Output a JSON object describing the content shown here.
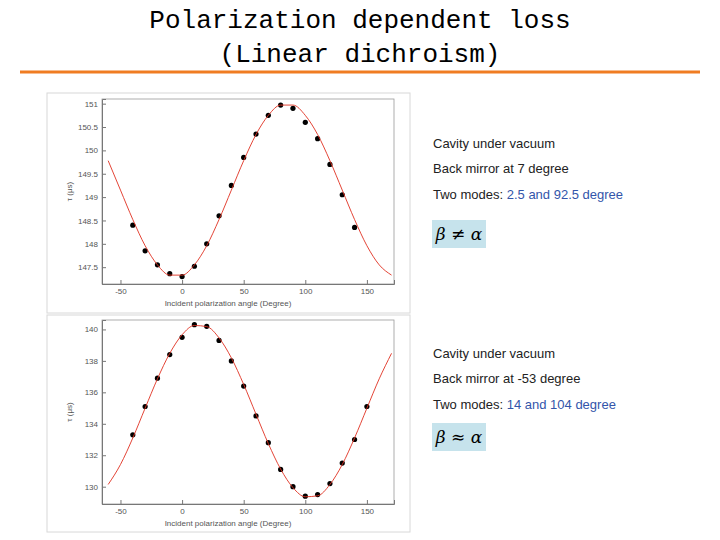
{
  "slide": {
    "title": "Polarization dependent loss",
    "subtitle": "(Linear dichroism)"
  },
  "chart_data": [
    {
      "type": "scatter",
      "x_label": "Incident polarization angle (Degree)",
      "y_label": "τ (μs)",
      "xlim": [
        -65,
        172
      ],
      "xticks": [
        -50,
        0,
        50,
        100,
        150
      ],
      "ylim": [
        147.14,
        151.1
      ],
      "yticks": [
        147.5,
        148,
        148.5,
        149,
        149.5,
        150,
        150.5,
        151
      ],
      "annotations": [
        "Cavity under vacuum",
        "Back mirror at 7 degree",
        [
          "Two modes: ",
          "2.5 and 92.5 degree"
        ],
        "β ≠ α"
      ],
      "series": [
        {
          "type": "scatter",
          "marker": "circle",
          "color": "#000000",
          "x": [
            -40,
            -30,
            -20,
            -10,
            0,
            10,
            20,
            30,
            40,
            50,
            60,
            70,
            80,
            90,
            100,
            110,
            120,
            130,
            140
          ],
          "values": [
            148.4,
            147.85,
            147.55,
            147.36,
            147.3,
            147.52,
            148.0,
            148.6,
            149.25,
            149.85,
            150.35,
            150.75,
            150.97,
            150.9,
            150.6,
            150.25,
            149.7,
            149.05,
            148.35
          ]
        },
        {
          "type": "line",
          "line_style": "solid",
          "color": "#e03020",
          "x": [
            -60,
            -50,
            -40,
            -30,
            -20,
            -10,
            0,
            10,
            20,
            30,
            40,
            50,
            60,
            70,
            80,
            90,
            100,
            110,
            120,
            130,
            140,
            150,
            160,
            170
          ],
          "values": [
            149.78,
            149.15,
            148.52,
            147.96,
            147.55,
            147.33,
            147.33,
            147.55,
            147.96,
            148.52,
            149.15,
            149.78,
            150.34,
            150.75,
            150.97,
            150.97,
            150.75,
            150.34,
            149.78,
            149.15,
            148.52,
            147.96,
            147.55,
            147.33
          ]
        }
      ]
    },
    {
      "type": "scatter",
      "x_label": "Incident polarization angle (Degree)",
      "y_label": "τ (μs)",
      "xlim": [
        -65,
        172
      ],
      "xticks": [
        -50,
        0,
        50,
        100,
        150
      ],
      "ylim": [
        128.9,
        140.6
      ],
      "yticks": [
        130,
        132,
        134,
        136,
        138,
        140
      ],
      "annotations": [
        "Cavity under vacuum",
        "Back mirror at -53 degree",
        [
          "Two modes: ",
          "14 and 104 degree"
        ],
        "β ≈ α"
      ],
      "series": [
        {
          "type": "scatter",
          "marker": "circle",
          "color": "#000000",
          "x": [
            -40,
            -30,
            -20,
            -10,
            0,
            10,
            20,
            30,
            40,
            50,
            60,
            70,
            80,
            90,
            100,
            110,
            120,
            130,
            140,
            150
          ],
          "values": [
            133.3,
            135.1,
            136.9,
            138.4,
            139.5,
            140.3,
            140.2,
            139.3,
            138.0,
            136.4,
            134.5,
            132.8,
            131.1,
            130.0,
            129.4,
            129.5,
            130.2,
            131.5,
            133.0,
            135.1
          ]
        },
        {
          "type": "line",
          "line_style": "solid",
          "color": "#e03020",
          "x": [
            -60,
            -50,
            -40,
            -30,
            -20,
            -10,
            0,
            10,
            20,
            30,
            40,
            50,
            60,
            70,
            80,
            90,
            100,
            110,
            120,
            130,
            140,
            150,
            160,
            170
          ],
          "values": [
            130.14,
            131.41,
            133.1,
            134.99,
            136.86,
            138.48,
            139.66,
            140.25,
            140.18,
            139.46,
            138.19,
            136.5,
            134.61,
            132.74,
            131.12,
            129.94,
            129.36,
            129.42,
            130.14,
            131.41,
            133.1,
            134.99,
            136.86,
            138.48
          ]
        }
      ]
    }
  ]
}
